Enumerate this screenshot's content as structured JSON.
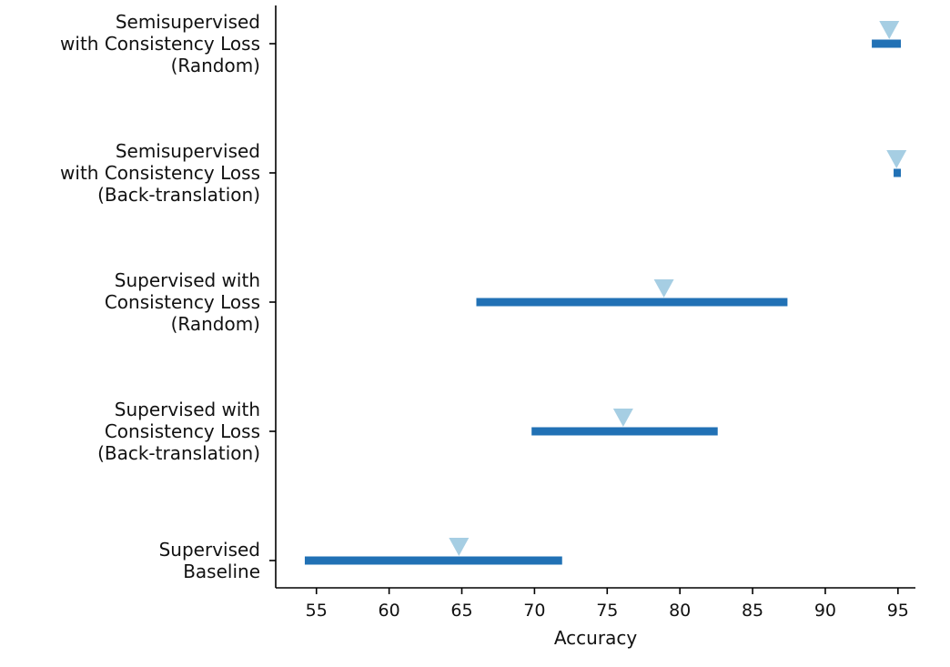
{
  "chart_data": {
    "type": "range",
    "orientation": "horizontal",
    "xlabel": "Accuracy",
    "xlim": [
      52.2,
      96.2
    ],
    "xticks": [
      55,
      60,
      65,
      70,
      75,
      80,
      85,
      90,
      95
    ],
    "grid": false,
    "legend": "none",
    "colors": {
      "range": "#2171b5",
      "marker": "#a6cee3"
    },
    "categories": [
      {
        "lines": [
          "Semisupervised",
          "with Consistency Loss",
          "(Random)"
        ],
        "min": 93.2,
        "max": 95.2,
        "marker": 94.4
      },
      {
        "lines": [
          "Semisupervised",
          "with Consistency Loss",
          "(Back-translation)"
        ],
        "min": 94.7,
        "max": 95.2,
        "marker": 94.9
      },
      {
        "lines": [
          "Supervised with",
          "Consistency Loss",
          "(Random)"
        ],
        "min": 66.0,
        "max": 87.4,
        "marker": 78.9
      },
      {
        "lines": [
          "Supervised with",
          "Consistency Loss",
          "(Back-translation)"
        ],
        "min": 69.8,
        "max": 82.6,
        "marker": 76.1
      },
      {
        "lines": [
          "Supervised",
          "Baseline"
        ],
        "min": 54.2,
        "max": 71.9,
        "marker": 64.8
      }
    ]
  }
}
